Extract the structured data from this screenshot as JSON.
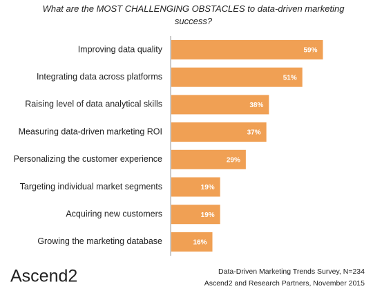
{
  "chart_data": {
    "type": "bar",
    "orientation": "horizontal",
    "title": "What are the MOST CHALLENGING OBSTACLES to data-driven marketing success?",
    "categories": [
      "Improving data quality",
      "Integrating data across platforms",
      "Raising level of data analytical skills",
      "Measuring data-driven marketing ROI",
      "Personalizing the customer experience",
      "Targeting individual market segments",
      "Acquiring new customers",
      "Growing the marketing database"
    ],
    "values": [
      59,
      51,
      38,
      37,
      29,
      19,
      19,
      16
    ],
    "value_labels": [
      "59%",
      "51%",
      "38%",
      "37%",
      "29%",
      "19%",
      "19%",
      "16%"
    ],
    "color": "#f0a054"
  },
  "footer": {
    "logo": "Ascend2",
    "source_lines": [
      "Data-Driven Marketing Trends Survey, N=234",
      "Ascend2 and Research Partners, November 2015"
    ]
  }
}
